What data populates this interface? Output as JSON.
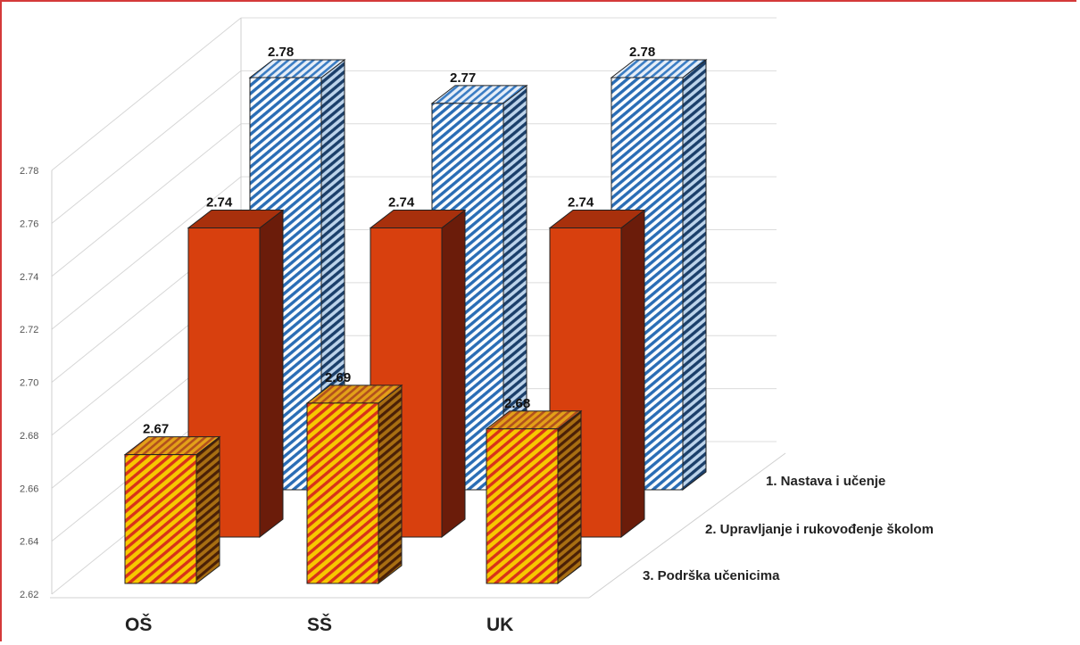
{
  "chart_data": {
    "type": "bar",
    "title": "",
    "xlabel": "",
    "ylabel": "",
    "categories": [
      "OŠ",
      "SŠ",
      "UK"
    ],
    "series": [
      {
        "name": "1. Nastava i učenje",
        "values": [
          2.78,
          2.77,
          2.78
        ],
        "color": "#2a6db5"
      },
      {
        "name": "2. Upravljanje i rukovođenje školom",
        "values": [
          2.74,
          2.74,
          2.74
        ],
        "color": "#d8400e"
      },
      {
        "name": "3. Podrška učenicima",
        "values": [
          2.67,
          2.69,
          2.68
        ],
        "color": "#f2b100"
      }
    ],
    "ylim": [
      2.62,
      2.78
    ],
    "yticks": [
      "2.62",
      "2.64",
      "2.66",
      "2.68",
      "2.70",
      "2.72",
      "2.74",
      "2.76",
      "2.78"
    ],
    "grid": true,
    "legend": "series names printed along the depth axis at right"
  }
}
